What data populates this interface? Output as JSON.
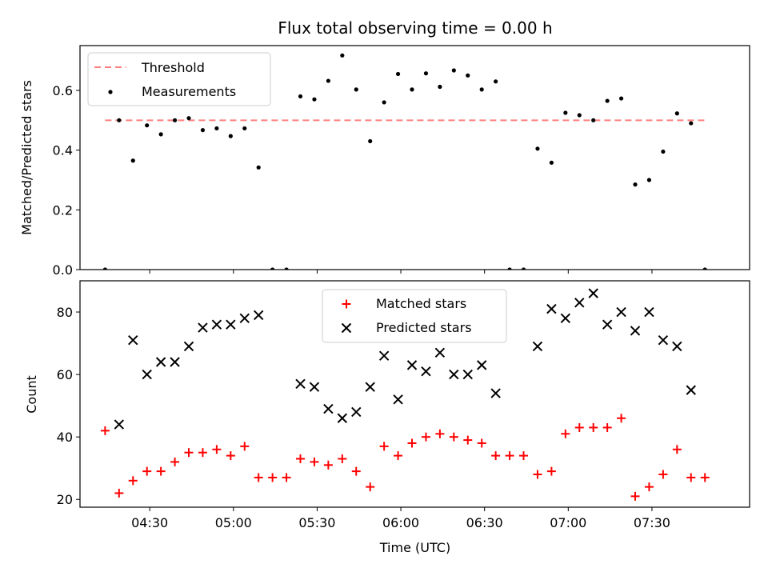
{
  "chart_data": [
    {
      "type": "scatter",
      "title": "Flux total observing time = 0.00 h",
      "xlabel": "",
      "ylabel": "Matched/Predicted stars",
      "xlim": [
        "04:05",
        "08:05"
      ],
      "ylim": [
        0,
        0.75
      ],
      "yticks": [
        "0.0",
        "0.2",
        "0.4",
        "0.6"
      ],
      "grid": false,
      "legend_position": "top-left",
      "legend": [
        {
          "label": "Threshold",
          "style": "dashed line",
          "color": "#ff7f7f"
        },
        {
          "label": "Measurements",
          "style": "dot",
          "color": "#000000"
        }
      ],
      "threshold": {
        "name": "Threshold",
        "y": 0.5,
        "x_start": "04:14",
        "x_end": "07:49"
      },
      "series": [
        {
          "name": "Measurements",
          "color": "#000000",
          "points": [
            [
              "04:14",
              0.0
            ],
            [
              "04:19",
              0.5
            ],
            [
              "04:24",
              0.365
            ],
            [
              "04:29",
              0.483
            ],
            [
              "04:34",
              0.453
            ],
            [
              "04:39",
              0.5
            ],
            [
              "04:44",
              0.507
            ],
            [
              "04:49",
              0.467
            ],
            [
              "04:54",
              0.473
            ],
            [
              "04:59",
              0.447
            ],
            [
              "05:04",
              0.473
            ],
            [
              "05:09",
              0.342
            ],
            [
              "05:14",
              0.0
            ],
            [
              "05:19",
              0.0
            ],
            [
              "05:24",
              0.58
            ],
            [
              "05:29",
              0.57
            ],
            [
              "05:34",
              0.632
            ],
            [
              "05:39",
              0.717
            ],
            [
              "05:44",
              0.603
            ],
            [
              "05:49",
              0.43
            ],
            [
              "05:54",
              0.56
            ],
            [
              "05:59",
              0.655
            ],
            [
              "06:04",
              0.603
            ],
            [
              "06:09",
              0.657
            ],
            [
              "06:14",
              0.612
            ],
            [
              "06:19",
              0.667
            ],
            [
              "06:24",
              0.65
            ],
            [
              "06:29",
              0.603
            ],
            [
              "06:34",
              0.63
            ],
            [
              "06:39",
              0.0
            ],
            [
              "06:44",
              0.0
            ],
            [
              "06:49",
              0.405
            ],
            [
              "06:54",
              0.358
            ],
            [
              "06:59",
              0.525
            ],
            [
              "07:04",
              0.517
            ],
            [
              "07:09",
              0.5
            ],
            [
              "07:14",
              0.565
            ],
            [
              "07:19",
              0.573
            ],
            [
              "07:24",
              0.285
            ],
            [
              "07:29",
              0.3
            ],
            [
              "07:34",
              0.395
            ],
            [
              "07:39",
              0.523
            ],
            [
              "07:44",
              0.49
            ],
            [
              "07:49",
              0.0
            ]
          ]
        }
      ]
    },
    {
      "type": "scatter",
      "title": "",
      "xlabel": "Time (UTC)",
      "ylabel": "Count",
      "xlim": [
        "04:05",
        "08:05"
      ],
      "ylim": [
        17.5,
        90
      ],
      "yticks": [
        "20",
        "40",
        "60",
        "80"
      ],
      "xticks": [
        "04:30",
        "05:00",
        "05:30",
        "06:00",
        "06:30",
        "07:00",
        "07:30"
      ],
      "grid": false,
      "legend_position": "top-center",
      "legend": [
        {
          "label": "Matched stars",
          "style": "plus",
          "color": "#ff0000"
        },
        {
          "label": "Predicted stars",
          "style": "x",
          "color": "#000000"
        }
      ],
      "series": [
        {
          "name": "Matched stars",
          "color": "#ff0000",
          "points": [
            [
              "04:14",
              42
            ],
            [
              "04:19",
              22
            ],
            [
              "04:24",
              26
            ],
            [
              "04:29",
              29
            ],
            [
              "04:34",
              29
            ],
            [
              "04:39",
              32
            ],
            [
              "04:44",
              35
            ],
            [
              "04:49",
              35
            ],
            [
              "04:54",
              36
            ],
            [
              "04:59",
              34
            ],
            [
              "05:04",
              37
            ],
            [
              "05:09",
              27
            ],
            [
              "05:14",
              27
            ],
            [
              "05:19",
              27
            ],
            [
              "05:24",
              33
            ],
            [
              "05:29",
              32
            ],
            [
              "05:34",
              31
            ],
            [
              "05:39",
              33
            ],
            [
              "05:44",
              29
            ],
            [
              "05:49",
              24
            ],
            [
              "05:54",
              37
            ],
            [
              "05:59",
              34
            ],
            [
              "06:04",
              38
            ],
            [
              "06:09",
              40
            ],
            [
              "06:14",
              41
            ],
            [
              "06:19",
              40
            ],
            [
              "06:24",
              39
            ],
            [
              "06:29",
              38
            ],
            [
              "06:34",
              34
            ],
            [
              "06:39",
              34
            ],
            [
              "06:44",
              34
            ],
            [
              "06:49",
              28
            ],
            [
              "06:54",
              29
            ],
            [
              "06:59",
              41
            ],
            [
              "07:04",
              43
            ],
            [
              "07:09",
              43
            ],
            [
              "07:14",
              43
            ],
            [
              "07:19",
              46
            ],
            [
              "07:24",
              21
            ],
            [
              "07:29",
              24
            ],
            [
              "07:34",
              28
            ],
            [
              "07:39",
              36
            ],
            [
              "07:44",
              27
            ],
            [
              "07:49",
              27
            ]
          ]
        },
        {
          "name": "Predicted stars",
          "color": "#000000",
          "points": [
            [
              "04:19",
              44
            ],
            [
              "04:24",
              71
            ],
            [
              "04:29",
              60
            ],
            [
              "04:34",
              64
            ],
            [
              "04:39",
              64
            ],
            [
              "04:44",
              69
            ],
            [
              "04:49",
              75
            ],
            [
              "04:54",
              76
            ],
            [
              "04:59",
              76
            ],
            [
              "05:04",
              78
            ],
            [
              "05:09",
              79
            ],
            [
              "05:24",
              57
            ],
            [
              "05:29",
              56
            ],
            [
              "05:34",
              49
            ],
            [
              "05:39",
              46
            ],
            [
              "05:44",
              48
            ],
            [
              "05:49",
              56
            ],
            [
              "05:54",
              66
            ],
            [
              "05:59",
              52
            ],
            [
              "06:04",
              63
            ],
            [
              "06:09",
              61
            ],
            [
              "06:14",
              67
            ],
            [
              "06:19",
              60
            ],
            [
              "06:24",
              60
            ],
            [
              "06:29",
              63
            ],
            [
              "06:34",
              54
            ],
            [
              "06:49",
              69
            ],
            [
              "06:54",
              81
            ],
            [
              "06:59",
              78
            ],
            [
              "07:04",
              83
            ],
            [
              "07:09",
              86
            ],
            [
              "07:14",
              76
            ],
            [
              "07:19",
              80
            ],
            [
              "07:24",
              74
            ],
            [
              "07:29",
              80
            ],
            [
              "07:34",
              71
            ],
            [
              "07:39",
              69
            ],
            [
              "07:44",
              55
            ]
          ]
        }
      ]
    }
  ]
}
